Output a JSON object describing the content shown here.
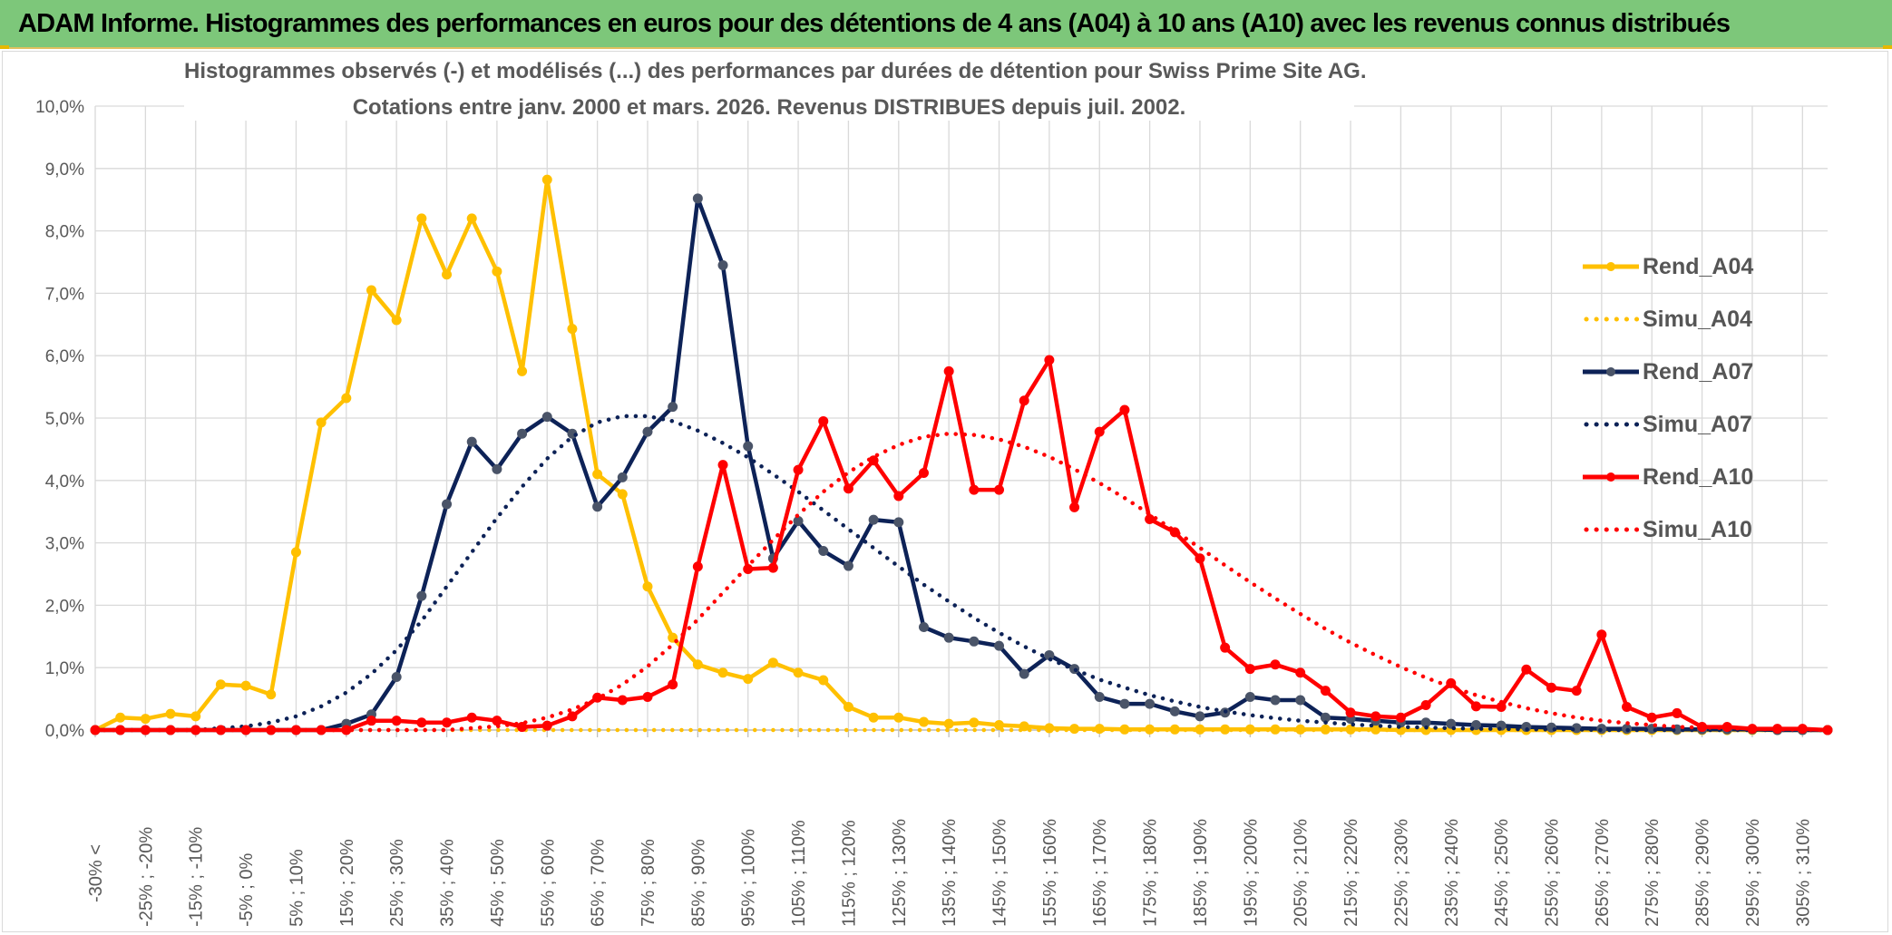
{
  "banner": {
    "title": "ADAM Informe. Histogrammes des performances en euros pour des détentions de 4 ans (A04) à 10 ans (A10) avec les revenus connus distribués"
  },
  "colors": {
    "banner_bg": "#7dc77a",
    "A04": "#ffc000",
    "A07": "#0d2257",
    "A10": "#ff0000",
    "grid": "#d9d9d9",
    "axis_text": "#595959"
  },
  "chart_data": {
    "type": "line",
    "title_line1": "Histogrammes observés (-) et modélisés (...) des performances par durées de détention pour Swiss Prime Site AG.",
    "title_line2": "Cotations entre janv. 2000 et mars. 2026. Revenus DISTRIBUES depuis juil. 2002.",
    "ylim": [
      0,
      10
    ],
    "y_ticks": [
      "0,0%",
      "1,0%",
      "2,0%",
      "3,0%",
      "4,0%",
      "5,0%",
      "6,0%",
      "7,0%",
      "8,0%",
      "9,0%",
      "10,0%"
    ],
    "grid": true,
    "legend_position": "right",
    "x_labels": [
      "-30% <",
      "[ -25% ; -20%",
      "[ -15% ; -10%",
      "[ -5% ; 0%",
      "[ 5% ; 10%",
      "[ 15% ; 20%",
      "[ 25% ; 30%",
      "[ 35% ; 40%",
      "[ 45% ; 50%",
      "[ 55% ; 60%",
      "[ 65% ; 70%",
      "[ 75% ; 80%",
      "[ 85% ; 90%",
      "[ 95% ; 100%",
      "[ 105% ; 110%",
      "[ 115% ; 120%",
      "[ 125% ; 130%",
      "[ 135% ; 140%",
      "[ 145% ; 150%",
      "[ 155% ; 160%",
      "[ 165% ; 170%",
      "[ 175% ; 180%",
      "[ 185% ; 190%",
      "[ 195% ; 200%",
      "[ 205% ; 210%",
      "[ 215% ; 220%",
      "[ 225% ; 230%",
      "[ 235% ; 240%",
      "[ 245% ; 250%",
      "[ 255% ; 260%",
      "[ 265% ; 270%",
      "[ 275% ; 280%",
      "[ 285% ; 290%",
      "[ 295% ; 300%",
      "[ 305% ; 310%"
    ],
    "series": [
      {
        "name": "Rend_A04",
        "style": "solid",
        "color": "#ffc000",
        "values": [
          0.0,
          0.2,
          0.18,
          0.26,
          0.22,
          0.73,
          0.71,
          0.57,
          2.85,
          4.93,
          5.32,
          7.05,
          6.57,
          8.2,
          7.3,
          8.2,
          7.35,
          5.75,
          8.82,
          6.43,
          4.1,
          3.78,
          2.3,
          1.48,
          1.05,
          0.92,
          0.82,
          1.08,
          0.92,
          0.8,
          0.37,
          0.2,
          0.2,
          0.13,
          0.1,
          0.12,
          0.08,
          0.06,
          0.03,
          0.02,
          0.02,
          0.01,
          0.01,
          0.01,
          0.01,
          0.01,
          0.01,
          0.01,
          0.01,
          0.01,
          0.01,
          0.01,
          0.0,
          0.0,
          0.0,
          0.0,
          0.0,
          0.0,
          0.0,
          0.0,
          0.0,
          0.0,
          0.0,
          0.0,
          0.0,
          0.0,
          0.0,
          0.0,
          0.0,
          0.0
        ]
      },
      {
        "name": "Simu_A04",
        "style": "dotted",
        "color": "#ffc000",
        "values": [
          0.0,
          0.0,
          0.0,
          0.0,
          0.0,
          0.0,
          0.0,
          0.0,
          0.0,
          0.0,
          0.0,
          0.0,
          0.0,
          0.0,
          0.0,
          0.0,
          0.0,
          0.0,
          0.0,
          0.0,
          0.0,
          0.0,
          0.0,
          0.0,
          0.0,
          0.0,
          0.0,
          0.0,
          0.0,
          0.0,
          0.0,
          0.0,
          0.0,
          0.0,
          0.0,
          0.0,
          0.0,
          0.0,
          0.0,
          0.0,
          0.0,
          0.0,
          0.0,
          0.0,
          0.0,
          0.0,
          0.0,
          0.0,
          0.0,
          0.0,
          0.0,
          0.0,
          0.0,
          0.0,
          0.0,
          0.0,
          0.0,
          0.0,
          0.0,
          0.0,
          0.0,
          0.0,
          0.0,
          0.0,
          0.0,
          0.0,
          0.0,
          0.0,
          0.0,
          0.0
        ]
      },
      {
        "name": "Rend_A07",
        "style": "solid",
        "color": "#0d2257",
        "values": [
          0.0,
          0.0,
          0.0,
          0.0,
          0.0,
          0.0,
          0.0,
          0.0,
          0.0,
          0.0,
          0.1,
          0.25,
          0.85,
          2.15,
          3.62,
          4.62,
          4.18,
          4.75,
          5.02,
          4.75,
          3.58,
          4.05,
          4.78,
          5.18,
          8.52,
          7.45,
          4.55,
          2.75,
          3.35,
          2.87,
          2.63,
          3.37,
          3.33,
          1.65,
          1.48,
          1.42,
          1.35,
          0.9,
          1.2,
          0.98,
          0.53,
          0.42,
          0.42,
          0.3,
          0.22,
          0.28,
          0.53,
          0.48,
          0.48,
          0.2,
          0.18,
          0.15,
          0.12,
          0.12,
          0.1,
          0.08,
          0.07,
          0.05,
          0.04,
          0.03,
          0.02,
          0.02,
          0.02,
          0.01,
          0.01,
          0.01,
          0.01,
          0.0,
          0.0,
          0.0
        ]
      },
      {
        "name": "Simu_A07",
        "style": "dotted",
        "color": "#0d2257",
        "values": [
          0.0,
          0.0,
          0.0,
          0.0,
          0.0,
          0.03,
          0.06,
          0.12,
          0.22,
          0.38,
          0.6,
          0.9,
          1.28,
          1.75,
          2.3,
          2.85,
          3.4,
          3.9,
          4.35,
          4.7,
          4.93,
          5.03,
          5.03,
          4.95,
          4.8,
          4.6,
          4.37,
          4.1,
          3.82,
          3.52,
          3.22,
          2.92,
          2.62,
          2.33,
          2.06,
          1.8,
          1.56,
          1.34,
          1.14,
          0.97,
          0.81,
          0.68,
          0.56,
          0.46,
          0.37,
          0.3,
          0.24,
          0.19,
          0.15,
          0.12,
          0.09,
          0.07,
          0.05,
          0.04,
          0.03,
          0.02,
          0.02,
          0.01,
          0.01,
          0.01,
          0.0,
          0.0,
          0.0,
          0.0,
          0.0,
          0.0,
          0.0,
          0.0,
          0.0,
          0.0
        ]
      },
      {
        "name": "Rend_A10",
        "style": "solid",
        "color": "#ff0000",
        "values": [
          0.0,
          0.0,
          0.0,
          0.0,
          0.0,
          0.0,
          0.0,
          0.0,
          0.0,
          0.0,
          0.0,
          0.15,
          0.15,
          0.12,
          0.12,
          0.2,
          0.15,
          0.05,
          0.07,
          0.22,
          0.52,
          0.48,
          0.53,
          0.73,
          2.62,
          4.25,
          2.58,
          2.6,
          4.17,
          4.95,
          3.87,
          4.32,
          3.75,
          4.12,
          5.75,
          3.85,
          3.85,
          5.28,
          5.93,
          3.57,
          4.78,
          5.13,
          3.38,
          3.17,
          2.75,
          1.32,
          0.98,
          1.05,
          0.92,
          0.63,
          0.28,
          0.22,
          0.2,
          0.4,
          0.75,
          0.38,
          0.37,
          0.97,
          0.68,
          0.63,
          1.53,
          0.37,
          0.2,
          0.27,
          0.05,
          0.05,
          0.02,
          0.02,
          0.02,
          0.0
        ]
      },
      {
        "name": "Simu_A10",
        "style": "dotted",
        "color": "#ff0000",
        "values": [
          0.0,
          0.0,
          0.0,
          0.0,
          0.0,
          0.0,
          0.0,
          0.0,
          0.0,
          0.0,
          0.0,
          0.0,
          0.0,
          0.0,
          0.0,
          0.03,
          0.06,
          0.11,
          0.2,
          0.33,
          0.5,
          0.73,
          1.02,
          1.37,
          1.77,
          2.2,
          2.63,
          3.05,
          3.45,
          3.82,
          4.13,
          4.38,
          4.57,
          4.7,
          4.75,
          4.73,
          4.66,
          4.54,
          4.38,
          4.18,
          3.96,
          3.72,
          3.46,
          3.19,
          2.92,
          2.64,
          2.37,
          2.11,
          1.86,
          1.62,
          1.4,
          1.2,
          1.01,
          0.84,
          0.69,
          0.56,
          0.45,
          0.35,
          0.27,
          0.2,
          0.15,
          0.11,
          0.08,
          0.05,
          0.04,
          0.03,
          0.02,
          0.01,
          0.01,
          0.0
        ]
      }
    ]
  }
}
